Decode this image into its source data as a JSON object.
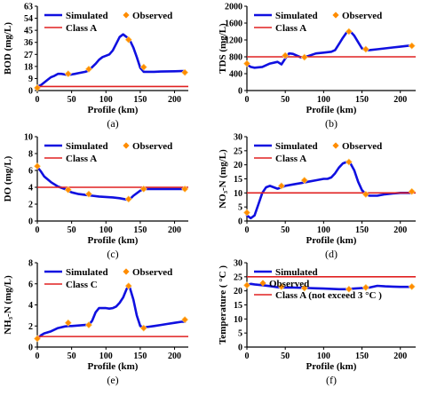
{
  "chart_data": [
    {
      "type": "line",
      "panel_label": "(a)",
      "xlabel": "Profile (km)",
      "ylabel": "BOD (mg/L)",
      "xlim": [
        0,
        220
      ],
      "ylim": [
        0,
        63
      ],
      "xticks": [
        0,
        50,
        100,
        150,
        200
      ],
      "yticks": [
        0,
        9,
        18,
        27,
        36,
        45,
        54,
        63
      ],
      "legend_placement": "top-left",
      "series": [
        {
          "name": "Simulated",
          "kind": "line",
          "color": "#1010E0",
          "x": [
            0,
            5,
            10,
            15,
            20,
            25,
            30,
            35,
            40,
            45,
            50,
            55,
            60,
            65,
            70,
            75,
            80,
            85,
            90,
            95,
            100,
            105,
            110,
            115,
            120,
            125,
            130,
            135,
            140,
            145,
            150,
            155,
            160,
            170,
            180,
            190,
            200,
            210,
            215
          ],
          "y": [
            3,
            4,
            6,
            8,
            10,
            11,
            12.5,
            12.5,
            12,
            11.8,
            12,
            12.5,
            13,
            13.5,
            14,
            15,
            17.5,
            20,
            23,
            25,
            26,
            27,
            30,
            35,
            40,
            42,
            40,
            37.5,
            32,
            25,
            17,
            14,
            14,
            14,
            14.2,
            14.3,
            14.4,
            14.5,
            14.5
          ]
        },
        {
          "name": "Observed",
          "kind": "marker",
          "color": "#FF8C00",
          "x": [
            0,
            45,
            75,
            133,
            155,
            215
          ],
          "y": [
            2,
            12.5,
            16,
            38,
            17.5,
            13.5
          ]
        },
        {
          "name": "Class A",
          "kind": "hline",
          "color": "#E02020",
          "y": 3
        }
      ]
    },
    {
      "type": "line",
      "panel_label": "(b)",
      "xlabel": "Profile (km)",
      "ylabel": "TDS (mg/L)",
      "xlim": [
        0,
        220
      ],
      "ylim": [
        0,
        2000
      ],
      "xticks": [
        0,
        50,
        100,
        150,
        200
      ],
      "yticks": [
        0,
        400,
        800,
        1200,
        1600,
        2000
      ],
      "legend_placement": "top-left",
      "series": [
        {
          "name": "Simulated",
          "kind": "line",
          "color": "#1010E0",
          "x": [
            0,
            5,
            10,
            20,
            30,
            40,
            45,
            50,
            55,
            60,
            65,
            70,
            75,
            80,
            90,
            100,
            110,
            115,
            120,
            125,
            130,
            135,
            140,
            145,
            150,
            155,
            160,
            170,
            180,
            190,
            200,
            210,
            215
          ],
          "y": [
            620,
            560,
            540,
            560,
            640,
            680,
            620,
            760,
            880,
            870,
            830,
            790,
            800,
            820,
            880,
            900,
            920,
            960,
            1100,
            1250,
            1380,
            1400,
            1300,
            1150,
            1000,
            960,
            960,
            980,
            1000,
            1020,
            1040,
            1060,
            1060
          ]
        },
        {
          "name": "Observed",
          "kind": "marker",
          "color": "#FF8C00",
          "x": [
            0,
            50,
            75,
            133,
            155,
            215
          ],
          "y": [
            640,
            830,
            790,
            1400,
            980,
            1060
          ]
        },
        {
          "name": "Class A",
          "kind": "hline",
          "color": "#E02020",
          "y": 800
        }
      ]
    },
    {
      "type": "line",
      "panel_label": "(c)",
      "xlabel": "Profile (km)",
      "ylabel": "DO (mg/L)",
      "xlim": [
        0,
        220
      ],
      "ylim": [
        0,
        10
      ],
      "xticks": [
        0,
        50,
        100,
        150,
        200
      ],
      "yticks": [
        0,
        2,
        4,
        6,
        8,
        10
      ],
      "legend_placement": "top-left",
      "series": [
        {
          "name": "Simulated",
          "kind": "line",
          "color": "#1010E0",
          "x": [
            0,
            5,
            10,
            20,
            30,
            40,
            50,
            60,
            70,
            80,
            90,
            100,
            110,
            120,
            130,
            135,
            140,
            150,
            155,
            160,
            170,
            180,
            190,
            200,
            210,
            215
          ],
          "y": [
            6.4,
            5.9,
            5.3,
            4.6,
            4.1,
            3.8,
            3.4,
            3.2,
            3.1,
            3.0,
            2.9,
            2.85,
            2.8,
            2.7,
            2.55,
            2.6,
            3.0,
            3.6,
            3.8,
            3.8,
            3.8,
            3.8,
            3.8,
            3.8,
            3.8,
            3.8
          ]
        },
        {
          "name": "Observed",
          "kind": "marker",
          "color": "#FF8C00",
          "x": [
            0,
            45,
            75,
            133,
            155,
            215
          ],
          "y": [
            6.5,
            3.7,
            3.2,
            2.6,
            3.8,
            3.8
          ]
        },
        {
          "name": "Class A",
          "kind": "hline",
          "color": "#E02020",
          "y": 4
        }
      ]
    },
    {
      "type": "line",
      "panel_label": "(d)",
      "xlabel": "Profile (km)",
      "ylabel": "NO₃-N (mg/L)",
      "xlim": [
        0,
        220
      ],
      "ylim": [
        0,
        30
      ],
      "xticks": [
        0,
        50,
        100,
        150,
        200
      ],
      "yticks": [
        0,
        5,
        10,
        15,
        20,
        25,
        30
      ],
      "legend_placement": "top-left",
      "series": [
        {
          "name": "Simulated",
          "kind": "line",
          "color": "#1010E0",
          "x": [
            0,
            5,
            10,
            15,
            20,
            25,
            30,
            35,
            40,
            45,
            50,
            60,
            70,
            80,
            90,
            100,
            105,
            110,
            115,
            120,
            125,
            130,
            135,
            140,
            145,
            150,
            155,
            160,
            170,
            180,
            190,
            200,
            210,
            215
          ],
          "y": [
            2,
            1,
            2,
            6,
            10,
            12,
            12.5,
            12,
            11.5,
            12,
            12.5,
            13,
            13.5,
            14,
            14.5,
            15,
            15,
            15.5,
            17,
            19,
            20.5,
            21,
            20.5,
            18,
            14,
            11,
            9.5,
            9,
            9,
            9.5,
            9.8,
            10,
            10,
            10
          ]
        },
        {
          "name": "Observed",
          "kind": "marker",
          "color": "#FF8C00",
          "x": [
            0,
            45,
            75,
            133,
            155,
            215
          ],
          "y": [
            3,
            12.5,
            14.5,
            21,
            9.5,
            10.5
          ]
        },
        {
          "name": "Class A",
          "kind": "hline",
          "color": "#E02020",
          "y": 10
        }
      ]
    },
    {
      "type": "line",
      "panel_label": "(e)",
      "xlabel": "Profile (km)",
      "ylabel": "NH₃-N (mg/L)",
      "xlim": [
        0,
        220
      ],
      "ylim": [
        0,
        8
      ],
      "xticks": [
        0,
        50,
        100,
        150,
        200
      ],
      "yticks": [
        0,
        2,
        4,
        6,
        8
      ],
      "legend_placement": "top-left",
      "series": [
        {
          "name": "Simulated",
          "kind": "line",
          "color": "#1010E0",
          "x": [
            0,
            5,
            10,
            20,
            30,
            40,
            45,
            50,
            60,
            70,
            75,
            80,
            85,
            90,
            95,
            100,
            105,
            110,
            115,
            120,
            125,
            130,
            133,
            135,
            140,
            145,
            150,
            155,
            160,
            170,
            180,
            190,
            200,
            210,
            215
          ],
          "y": [
            0.8,
            1.1,
            1.3,
            1.5,
            1.8,
            1.95,
            2.0,
            2.0,
            2.05,
            2.1,
            2.1,
            2.5,
            3.3,
            3.7,
            3.7,
            3.7,
            3.65,
            3.7,
            3.85,
            4.2,
            4.7,
            5.5,
            5.8,
            5.6,
            4.5,
            3.0,
            2.0,
            1.85,
            1.9,
            2.0,
            2.1,
            2.2,
            2.3,
            2.4,
            2.4
          ]
        },
        {
          "name": "Observed",
          "kind": "marker",
          "color": "#FF8C00",
          "x": [
            0,
            45,
            75,
            133,
            155,
            215
          ],
          "y": [
            0.8,
            2.3,
            2.1,
            5.8,
            1.8,
            2.6
          ]
        },
        {
          "name": "Class C",
          "kind": "hline",
          "color": "#E02020",
          "y": 1
        }
      ]
    },
    {
      "type": "line",
      "panel_label": "(f)",
      "xlabel": "Profile (km)",
      "ylabel": "Temperature ( °C )",
      "xlim": [
        0,
        220
      ],
      "ylim": [
        0,
        30
      ],
      "xticks": [
        0,
        50,
        100,
        150,
        200
      ],
      "yticks": [
        0,
        5,
        10,
        15,
        20,
        25,
        30
      ],
      "legend_placement": "top-left",
      "series": [
        {
          "name": "Simulated",
          "kind": "line",
          "color": "#1010E0",
          "x": [
            0,
            5,
            10,
            20,
            30,
            40,
            50,
            60,
            70,
            80,
            90,
            100,
            110,
            120,
            130,
            140,
            150,
            160,
            170,
            180,
            190,
            200,
            210,
            215
          ],
          "y": [
            22,
            22.5,
            22.3,
            22,
            21.7,
            21.3,
            21.2,
            21.2,
            21.1,
            21.0,
            20.9,
            20.8,
            20.7,
            20.6,
            20.6,
            20.8,
            21.0,
            21.2,
            21.8,
            21.6,
            21.5,
            21.4,
            21.4,
            21.4
          ]
        },
        {
          "name": "Observed",
          "kind": "marker",
          "color": "#FF8C00",
          "x": [
            0,
            45,
            75,
            133,
            155,
            215
          ],
          "y": [
            22,
            21.5,
            21,
            20.6,
            21.2,
            21.5
          ]
        },
        {
          "name": "Class A (not exceed 3 °C )",
          "kind": "hline",
          "color": "#E02020",
          "y": 25
        }
      ]
    }
  ]
}
